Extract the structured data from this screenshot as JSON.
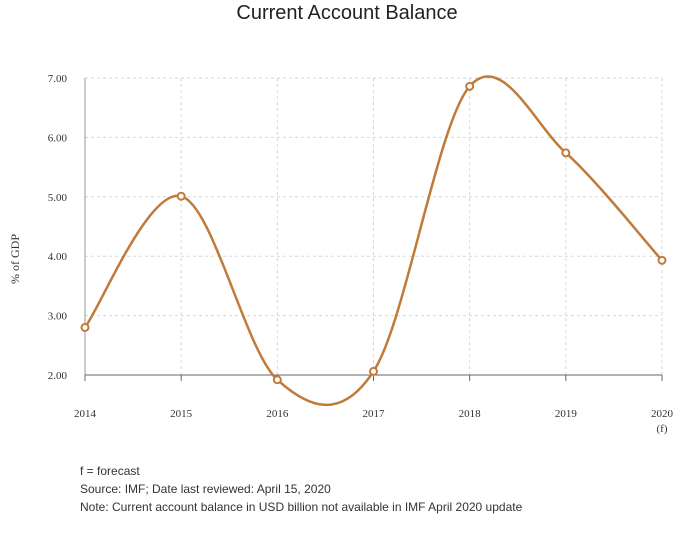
{
  "chart_data": {
    "type": "line",
    "title": "Current Account Balance",
    "xlabel": "",
    "ylabel": "% of GDP",
    "categories": [
      "2014",
      "2015",
      "2016",
      "2017",
      "2018",
      "2019",
      "2020"
    ],
    "category_sublabels": [
      "",
      "",
      "",
      "",
      "",
      "",
      "(f)"
    ],
    "series": [
      {
        "values": [
          2.8,
          5.01,
          1.92,
          2.06,
          6.86,
          5.74,
          3.93
        ],
        "color": "#c07a3a"
      }
    ],
    "yticks": [
      "7.00",
      "6.00",
      "5.00",
      "4.00",
      "3.00",
      "2.00"
    ],
    "ylim": [
      2.0,
      7.0
    ],
    "grid": true,
    "legend": "none"
  },
  "footnotes": {
    "forecast": "f = forecast",
    "source": "Source: IMF; Date last reviewed: April 15, 2020",
    "note": "Note: Current account balance in USD billion not available in IMF April 2020 update"
  }
}
